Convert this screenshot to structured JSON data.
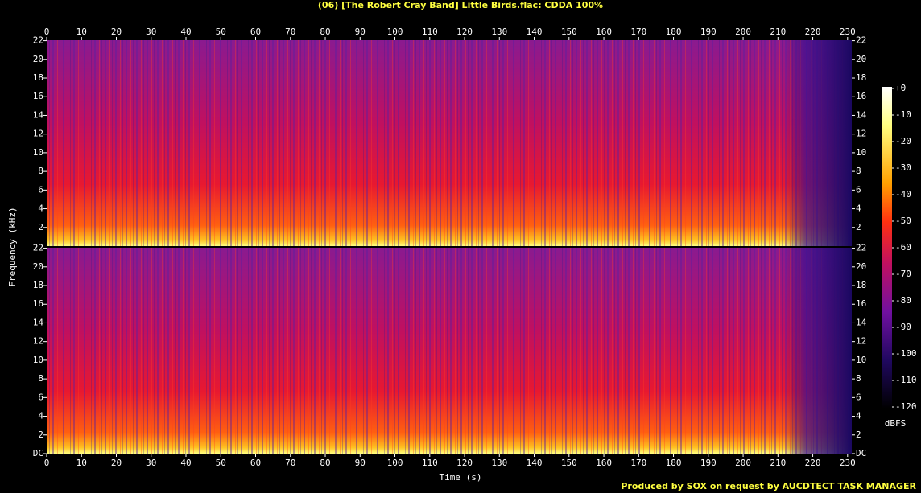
{
  "chart_data": {
    "type": "spectrogram",
    "title": "(06) [The Robert Cray Band] Little Birds.flac: CDDA 100%",
    "xlabel": "Time (s)",
    "ylabel": "Frequency (kHz)",
    "xlim": [
      0,
      231.2
    ],
    "xticks": [
      0,
      10,
      20,
      30,
      40,
      50,
      60,
      70,
      80,
      90,
      100,
      110,
      120,
      130,
      140,
      150,
      160,
      170,
      180,
      190,
      200,
      210,
      220,
      230
    ],
    "ylim": [
      0,
      22.05
    ],
    "yticks": [
      {
        "value": 0,
        "label": "DC"
      },
      2,
      4,
      6,
      8,
      10,
      12,
      14,
      16,
      18,
      20,
      22
    ],
    "colorbar": {
      "label": "dBFS",
      "lim": [
        -120,
        0
      ],
      "ticks": [
        {
          "value": 0,
          "label": "+0"
        },
        -10,
        -20,
        -30,
        -40,
        -50,
        -60,
        -70,
        -80,
        -90,
        -100,
        -110,
        -120
      ]
    },
    "footer": "Produced by SOX on request by AUCDTECT TASK MANAGER"
  }
}
